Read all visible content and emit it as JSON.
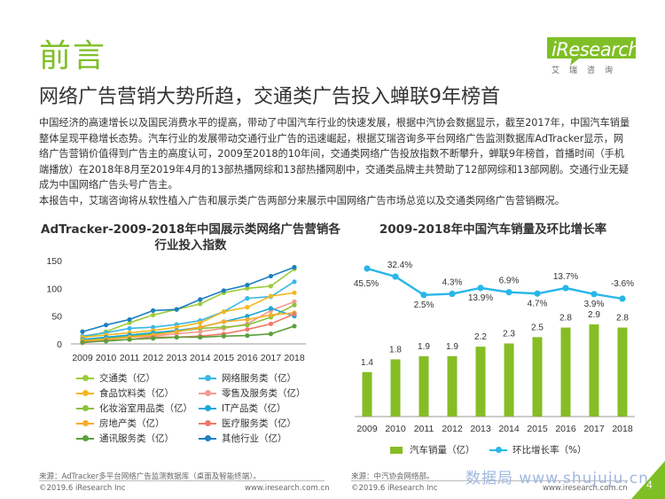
{
  "header": {
    "title": "前言",
    "subtitle": "网络广告营销大势所趋，交通类广告投入蝉联9年榜首",
    "logo_text": "iResearch",
    "logo_sub": "艾瑞咨询"
  },
  "intro": [
    "中国经济的高速增长以及国民消费水平的提高，带动了中国汽车行业的快速发展，根据中汽协会数据显示，截至2017年，中国汽车销量整体呈现平稳增长态势。汽车行业的发展带动交通行业广告的迅速崛起，根据艾瑞咨询多平台网络广告监测数据库AdTracker显示，网络广告营销价值得到广告主的高度认可，2009至2018的10年间，交通类网络广告投放指数不断攀升，蝉联9年榜首，首播时间（手机端播放）在2018年8月至2019年4月的13部热播网综和13部热播网剧中，交通类品牌主共赞助了12部网综和13部网剧。交通行业无疑成为中国网络广告头号广告主。",
    "本报告中，艾瑞咨询将从软性植入广告和展示类广告两部分来展示中国网络广告市场总览以及交通类网络广告营销概况。"
  ],
  "colors": {
    "accent_green": "#7fbf26",
    "bar_green": "#86bd24",
    "line_blue": "#29b6e8"
  },
  "chart_data": [
    {
      "type": "line",
      "title": "AdTracker-2009-2018年中国展示类网络广告营销各行业投入指数",
      "x": [
        "2009",
        "2010",
        "2011",
        "2012",
        "2013",
        "2014",
        "2015",
        "2016",
        "2017",
        "2018"
      ],
      "ylim": [
        0,
        150
      ],
      "yticks": [
        0,
        50,
        100,
        150
      ],
      "legend_position": "bottom",
      "series": [
        {
          "name": "交通类（亿）",
          "color": "#9ccc3c",
          "values": [
            10,
            22,
            38,
            52,
            62,
            72,
            92,
            100,
            104,
            135
          ]
        },
        {
          "name": "网络服务类（亿）",
          "color": "#3ab7e6",
          "values": [
            14,
            20,
            28,
            30,
            35,
            42,
            58,
            82,
            85,
            112
          ]
        },
        {
          "name": "食品饮料类（亿）",
          "color": "#f5b820",
          "values": [
            12,
            16,
            20,
            24,
            30,
            38,
            58,
            66,
            86,
            92
          ]
        },
        {
          "name": "零售及服务类（亿）",
          "color": "#f39b8e",
          "values": [
            4,
            8,
            12,
            14,
            18,
            22,
            28,
            36,
            60,
            76
          ]
        },
        {
          "name": "化妆浴室用品类（亿）",
          "color": "#8cc23c",
          "values": [
            6,
            10,
            14,
            18,
            22,
            28,
            30,
            34,
            48,
            70
          ]
        },
        {
          "name": "IT产品类（亿）",
          "color": "#1ba8d8",
          "values": [
            8,
            12,
            16,
            20,
            24,
            30,
            40,
            50,
            64,
            50
          ]
        },
        {
          "name": "房地产类（亿）",
          "color": "#f8ac2a",
          "values": [
            6,
            8,
            12,
            16,
            22,
            30,
            40,
            44,
            52,
            56
          ]
        },
        {
          "name": "医疗服务类（亿）",
          "color": "#f07a6a",
          "values": [
            2,
            6,
            8,
            12,
            12,
            14,
            18,
            26,
            36,
            54
          ]
        },
        {
          "name": "通讯服务类（亿）",
          "color": "#5ba03a",
          "values": [
            3,
            5,
            8,
            10,
            12,
            12,
            14,
            15,
            18,
            32
          ]
        },
        {
          "name": "其他行业（亿）",
          "color": "#1b7fc2",
          "values": [
            22,
            34,
            44,
            60,
            62,
            80,
            96,
            106,
            122,
            138
          ]
        }
      ]
    },
    {
      "type": "bar+line",
      "title": "2009-2018年中国汽车销量及环比增长率",
      "x": [
        "2009",
        "2010",
        "2011",
        "2012",
        "2013",
        "2014",
        "2015",
        "2016",
        "2017",
        "2018"
      ],
      "legend_position": "bottom",
      "series": [
        {
          "name": "汽车销量（亿）",
          "type": "bar",
          "color": "#86bd24",
          "values": [
            1.4,
            1.8,
            1.9,
            1.9,
            2.2,
            2.3,
            2.5,
            2.8,
            2.9,
            2.8
          ],
          "labels": [
            "1.4",
            "1.8",
            "1.9",
            "1.9",
            "2.2",
            "2.3",
            "2.5",
            "2.8",
            "2.9",
            "2.8"
          ]
        },
        {
          "name": "环比增长率（%）",
          "type": "line",
          "color": "#29b6e8",
          "values": [
            45.5,
            32.4,
            2.5,
            4.3,
            13.9,
            6.9,
            4.7,
            13.7,
            3.9,
            -3.6
          ],
          "labels": [
            "45.5%",
            "32.4%",
            "2.5%",
            "4.3%",
            "13.9%",
            "6.9%",
            "4.7%",
            "13.7%",
            "3.9%",
            "-3.6%"
          ]
        }
      ]
    }
  ],
  "footer": {
    "source_left": "来源：AdTracker多平台网络广告监测数据库（桌面及智能终端）。",
    "source_right": "来源：中汽协会网络部。",
    "copyright_left": "©2019.6 iResearch Inc",
    "website_left": "www.iresearch.com.cn",
    "copyright_right": "©2019.6 iResearch Inc",
    "website_right": "www.iresearch.com.cn",
    "watermark": "数据局 www.shujuju.cn",
    "page_number": "4"
  }
}
